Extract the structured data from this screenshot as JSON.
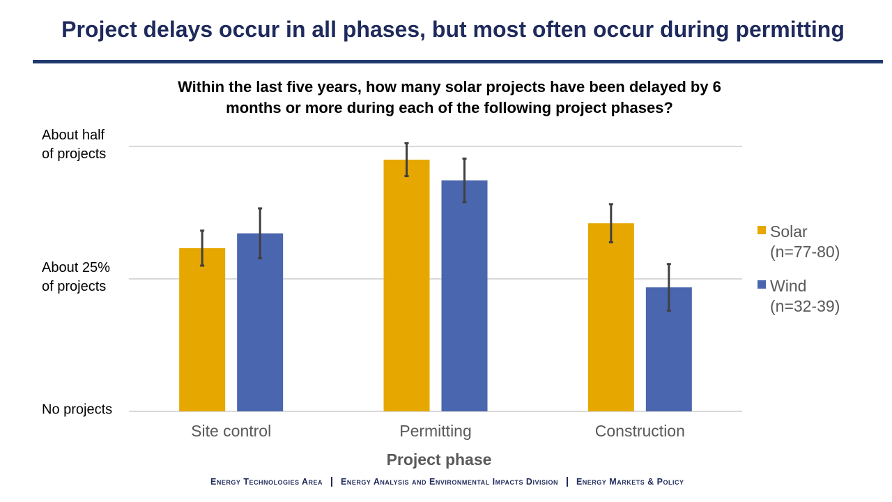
{
  "header": {
    "title": "Project delays occur in all phases, but most often occur during permitting"
  },
  "chart_data": {
    "type": "bar",
    "title": "Within the last five years, how many solar projects have been delayed by 6\nmonths or more during each of the following project phases?",
    "x_label": "Project phase",
    "categories": [
      "Site control",
      "Permitting",
      "Construction"
    ],
    "series": [
      {
        "name": "Solar\n(n=77-80)",
        "color": "#e6a700",
        "values": [
          30.8,
          47.5,
          35.5
        ],
        "errors": [
          3.3,
          3.1,
          3.6
        ]
      },
      {
        "name": "Wind\n(n=32-39)",
        "color": "#4a66ae",
        "values": [
          33.6,
          43.6,
          23.4
        ],
        "errors": [
          4.7,
          4.1,
          4.4
        ]
      }
    ],
    "ylim": [
      0,
      50
    ],
    "yticks": [
      {
        "value": 0,
        "label": "No projects"
      },
      {
        "value": 25,
        "label": "About 25%\nof projects"
      },
      {
        "value": 50,
        "label": "About half\nof projects"
      }
    ],
    "grid": true,
    "legend": "right"
  },
  "footer": {
    "items": [
      "Energy Technologies Area",
      "Energy Analysis and Environmental Impacts Division",
      "Energy Markets & Policy"
    ]
  }
}
